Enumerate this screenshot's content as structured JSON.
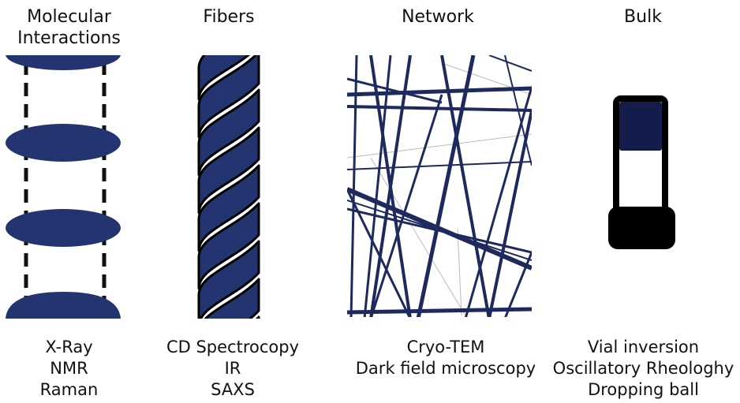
{
  "columns": [
    {
      "title_lines": [
        "Molecular",
        "Interactions"
      ],
      "methods": [
        "X-Ray",
        "NMR",
        "Raman"
      ]
    },
    {
      "title_lines": [
        "Fibers"
      ],
      "methods": [
        "CD Spectrocopy",
        "IR",
        "SAXS"
      ]
    },
    {
      "title_lines": [
        "Network"
      ],
      "methods": [
        "Cryo-TEM",
        "Dark field microscopy"
      ]
    },
    {
      "title_lines": [
        "Bulk"
      ],
      "methods": [
        "Vial inversion",
        "Oscillatory Rheologhy",
        "Dropping ball"
      ]
    }
  ],
  "colors": {
    "navy": "#233470",
    "dark_navy": "#141c4c",
    "black": "#000000",
    "white": "#ffffff"
  },
  "icons": [
    "molecular-stack-icon",
    "twisted-fiber-icon",
    "fiber-network-icon",
    "vial-icon"
  ]
}
